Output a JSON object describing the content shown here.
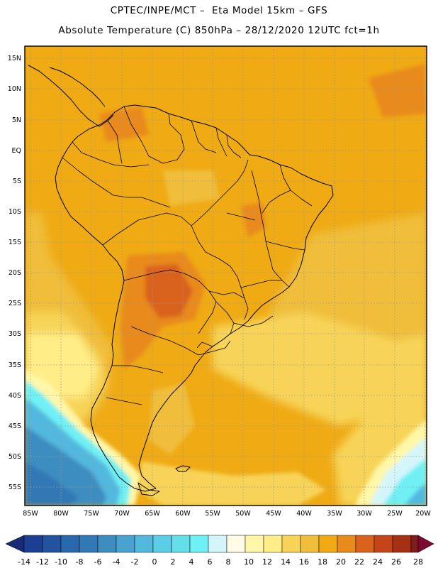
{
  "header": {
    "line1": "CPTEC/INPE/MCT –  Eta Model 15km – GFS",
    "line2": "Absolute Temperature (C) 850hPa – 28/12/2020 12UTC fct=1h"
  },
  "axes": {
    "lat_labels": [
      "15N",
      "10N",
      "5N",
      "EQ",
      "5S",
      "10S",
      "15S",
      "20S",
      "25S",
      "30S",
      "35S",
      "40S",
      "45S",
      "50S",
      "55S"
    ],
    "lon_labels": [
      "85W",
      "80W",
      "75W",
      "70W",
      "65W",
      "60W",
      "55W",
      "50W",
      "45W",
      "40W",
      "35W",
      "30W",
      "25W",
      "20W"
    ]
  },
  "colorbar": {
    "labels": [
      "-14",
      "-12",
      "-10",
      "-8",
      "-6",
      "-4",
      "-2",
      "0",
      "2",
      "4",
      "6",
      "8",
      "10",
      "12",
      "14",
      "16",
      "18",
      "20",
      "22",
      "24",
      "26",
      "28"
    ],
    "colors": [
      "#1c3f94",
      "#23539f",
      "#2a68ac",
      "#3178b5",
      "#3d8dc0",
      "#4aa3cf",
      "#52b8de",
      "#5ccde6",
      "#64dfea",
      "#6ff0f4",
      "#d4f6fb",
      "#fffbe6",
      "#fff7a8",
      "#ffee88",
      "#f7d458",
      "#f0be3a",
      "#efaa14",
      "#e88a1c",
      "#d9621c",
      "#c44519",
      "#a63014",
      "#7e1e1e"
    ],
    "low_arrow_color": "#1a2a78",
    "high_arrow_color": "#7a0a30"
  }
}
